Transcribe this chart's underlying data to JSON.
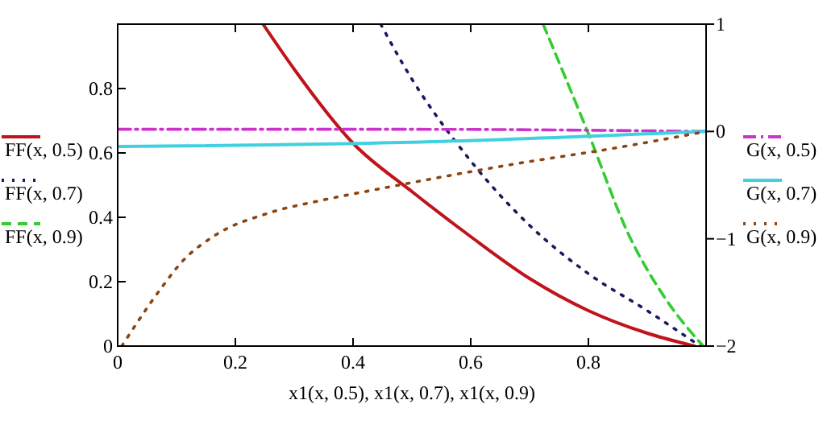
{
  "chart_data": {
    "type": "line",
    "xlabel": "x1(x, 0.5), x1(x, 0.7), x1(x, 0.9)",
    "xlim": [
      0,
      1
    ],
    "xticks": [
      0,
      0.2,
      0.4,
      0.6,
      0.8
    ],
    "ylim": [
      0,
      1
    ],
    "yticks": [
      0,
      0.2,
      0.4,
      0.6,
      0.8
    ],
    "y2lim": [
      -2,
      1
    ],
    "y2ticks": [
      -2,
      -1,
      0,
      1
    ],
    "grid": false,
    "legend": "left",
    "series": [
      {
        "name": "FF(x, 0.5)",
        "color": "#c0141c",
        "line_style": "solid",
        "x": [
          0.247,
          0.3,
          0.4,
          0.5,
          0.6,
          0.7,
          0.8,
          0.9,
          0.98
        ],
        "values": [
          1,
          0.86,
          0.63,
          0.48,
          0.34,
          0.21,
          0.11,
          0.04,
          0
        ]
      },
      {
        "name": "FF(x, 0.7)",
        "color": "#1a1a5e",
        "line_style": "dotted",
        "x": [
          0.447,
          0.485,
          0.6,
          0.7,
          0.8,
          0.9,
          0.99
        ],
        "values": [
          1,
          0.875,
          0.575,
          0.375,
          0.225,
          0.11,
          0
        ]
      },
      {
        "name": "FF(x, 0.9)",
        "color": "#33cc33",
        "line_style": "dashed",
        "x": [
          0.723,
          0.8,
          0.87,
          0.93,
          0.995
        ],
        "values": [
          1,
          0.66,
          0.34,
          0.15,
          0
        ]
      },
      {
        "name": "G(x, 0.5)",
        "color": "#cc33cc",
        "line_style": "dashdot",
        "axis": "y2",
        "x": [
          0,
          0.5,
          1
        ],
        "values": [
          0.02,
          0.02,
          0
        ]
      },
      {
        "name": "G(x, 0.7)",
        "color": "#40d0e0",
        "line_style": "solid",
        "axis": "y2",
        "x": [
          0,
          0.5,
          1
        ],
        "values": [
          -0.14,
          -0.1,
          0
        ]
      },
      {
        "name": "G(x, 0.9)",
        "color": "#8b4513",
        "line_style": "dotted",
        "axis": "y2",
        "x": [
          0.007,
          0.074,
          0.11,
          0.165,
          0.257,
          0.348,
          0.44,
          0.667,
          0.85,
          1
        ],
        "values": [
          -2,
          -1.46,
          -1.21,
          -0.97,
          -0.76,
          -0.64,
          -0.54,
          -0.31,
          -0.15,
          0
        ]
      }
    ]
  }
}
